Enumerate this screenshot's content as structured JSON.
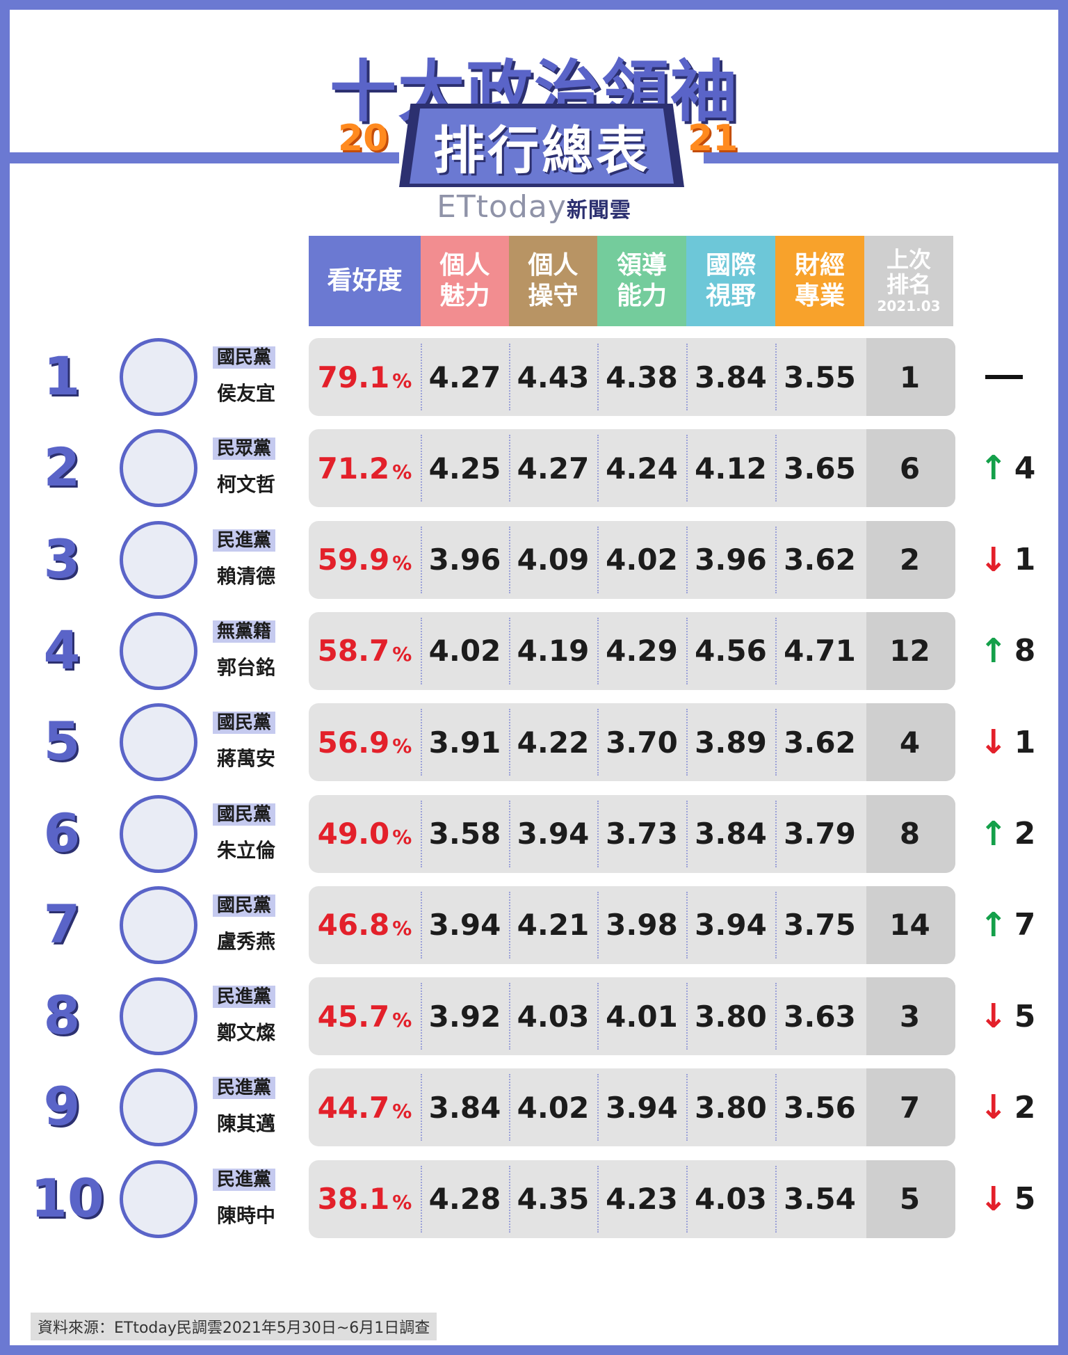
{
  "title": "十大政治領袖",
  "subtitle": "排行總表",
  "year_left": "20",
  "year_right": "21",
  "brand": "ETtoday",
  "brand_sub": "新聞雲",
  "columns": {
    "approval": "看好度",
    "charm": "個人魅力",
    "integrity": "個人操守",
    "leadership": "領導能力",
    "international": "國際視野",
    "finance": "財經專業",
    "previous_rank": "上次排名",
    "previous_date": "2021.03"
  },
  "column_colors": {
    "approval": "#6b79d2",
    "charm": "#f28d90",
    "integrity": "#b89464",
    "leadership": "#74cc9c",
    "international": "#6dc7d8",
    "finance": "#f8a22b",
    "previous_rank": "#cfcfcf"
  },
  "rows": [
    {
      "rank": "1",
      "party": "國民黨",
      "name": "侯友宜",
      "approval": "79.1",
      "unit": "%",
      "charm": "4.27",
      "integrity": "4.43",
      "leadership": "4.38",
      "international": "3.84",
      "finance": "3.55",
      "prev": "1",
      "change_dir": "flat",
      "change": ""
    },
    {
      "rank": "2",
      "party": "民眾黨",
      "name": "柯文哲",
      "approval": "71.2",
      "unit": "%",
      "charm": "4.25",
      "integrity": "4.27",
      "leadership": "4.24",
      "international": "4.12",
      "finance": "3.65",
      "prev": "6",
      "change_dir": "up",
      "change": "4"
    },
    {
      "rank": "3",
      "party": "民進黨",
      "name": "賴清德",
      "approval": "59.9",
      "unit": "%",
      "charm": "3.96",
      "integrity": "4.09",
      "leadership": "4.02",
      "international": "3.96",
      "finance": "3.62",
      "prev": "2",
      "change_dir": "down",
      "change": "1"
    },
    {
      "rank": "4",
      "party": "無黨籍",
      "name": "郭台銘",
      "approval": "58.7",
      "unit": "%",
      "charm": "4.02",
      "integrity": "4.19",
      "leadership": "4.29",
      "international": "4.56",
      "finance": "4.71",
      "prev": "12",
      "change_dir": "up",
      "change": "8"
    },
    {
      "rank": "5",
      "party": "國民黨",
      "name": "蔣萬安",
      "approval": "56.9",
      "unit": "%",
      "charm": "3.91",
      "integrity": "4.22",
      "leadership": "3.70",
      "international": "3.89",
      "finance": "3.62",
      "prev": "4",
      "change_dir": "down",
      "change": "1"
    },
    {
      "rank": "6",
      "party": "國民黨",
      "name": "朱立倫",
      "approval": "49.0",
      "unit": "%",
      "charm": "3.58",
      "integrity": "3.94",
      "leadership": "3.73",
      "international": "3.84",
      "finance": "3.79",
      "prev": "8",
      "change_dir": "up",
      "change": "2"
    },
    {
      "rank": "7",
      "party": "國民黨",
      "name": "盧秀燕",
      "approval": "46.8",
      "unit": "%",
      "charm": "3.94",
      "integrity": "4.21",
      "leadership": "3.98",
      "international": "3.94",
      "finance": "3.75",
      "prev": "14",
      "change_dir": "up",
      "change": "7"
    },
    {
      "rank": "8",
      "party": "民進黨",
      "name": "鄭文燦",
      "approval": "45.7",
      "unit": "%",
      "charm": "3.92",
      "integrity": "4.03",
      "leadership": "4.01",
      "international": "3.80",
      "finance": "3.63",
      "prev": "3",
      "change_dir": "down",
      "change": "5"
    },
    {
      "rank": "9",
      "party": "民進黨",
      "name": "陳其邁",
      "approval": "44.7",
      "unit": "%",
      "charm": "3.84",
      "integrity": "4.02",
      "leadership": "3.94",
      "international": "3.80",
      "finance": "3.56",
      "prev": "7",
      "change_dir": "down",
      "change": "2"
    },
    {
      "rank": "10",
      "party": "民進黨",
      "name": "陳時中",
      "approval": "38.1",
      "unit": "%",
      "charm": "4.28",
      "integrity": "4.35",
      "leadership": "4.23",
      "international": "4.03",
      "finance": "3.54",
      "prev": "5",
      "change_dir": "down",
      "change": "5"
    }
  ],
  "source": "資料來源：ETtoday民調雲2021年5月30日~6月1日調查"
}
